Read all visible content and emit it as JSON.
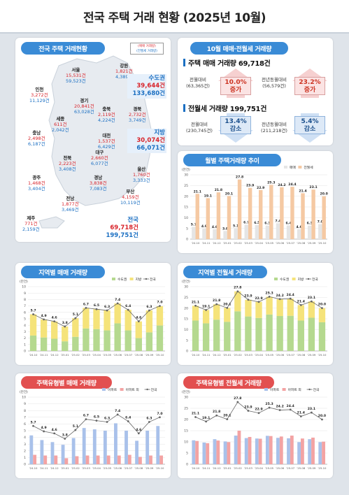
{
  "page": {
    "title": "전국 주택 거래 현황 (2025년 10월)"
  },
  "colors": {
    "maemae": "#f5e37a",
    "sudokwon": "#b5d98f",
    "jibang": "#f5e37a",
    "apt": "#a9c1ea",
    "nonapt": "#f3a3a3",
    "jeonse_bar": "#f5c9a3",
    "maemae_bar": "#e5e5e5",
    "title_blue": "#3a8bd6",
    "title_red": "#e25050",
    "line": "#666666"
  },
  "map": {
    "panel_title": "전국 주택 거래현황",
    "legend": [
      "(매매 거래량)",
      "(전월세 거래량)"
    ],
    "regions": [
      {
        "name": "서울",
        "trade": "15,531건",
        "jeonse": "59,523건"
      },
      {
        "name": "강원",
        "trade": "1,821건",
        "jeonse": "4,389건"
      },
      {
        "name": "인천",
        "trade": "3,272건",
        "jeonse": "11,129건"
      },
      {
        "name": "경기",
        "trade": "20,841건",
        "jeonse": "63,028건"
      },
      {
        "name": "충북",
        "trade": "2,119건",
        "jeonse": "4,224건"
      },
      {
        "name": "세종",
        "trade": "611건",
        "jeonse": "2,042건"
      },
      {
        "name": "경북",
        "trade": "2,732건",
        "jeonse": "3,749건"
      },
      {
        "name": "충남",
        "trade": "2,498건",
        "jeonse": "6,187건"
      },
      {
        "name": "대전",
        "trade": "1,537건",
        "jeonse": "6,429건"
      },
      {
        "name": "대구",
        "trade": "2,660건",
        "jeonse": "6,077건"
      },
      {
        "name": "전북",
        "trade": "2,223건",
        "jeonse": "3,408건"
      },
      {
        "name": "울산",
        "trade": "1,760건",
        "jeonse": "3,333건"
      },
      {
        "name": "광주",
        "trade": "1,468건",
        "jeonse": "3,404건"
      },
      {
        "name": "경남",
        "trade": "3,838건",
        "jeonse": "7,083건"
      },
      {
        "name": "부산",
        "trade": "4,159건",
        "jeonse": "10,119건"
      },
      {
        "name": "전남",
        "trade": "1,877건",
        "jeonse": "3,469건"
      },
      {
        "name": "제주",
        "trade": "771건",
        "jeonse": "2,159건"
      }
    ],
    "sudokwon": {
      "name": "수도권",
      "trade": "39,644건",
      "jeonse": "133,680건"
    },
    "jibang": {
      "name": "지방",
      "trade": "30,074건",
      "jeonse": "66,071건"
    },
    "national": {
      "name": "전국",
      "trade": "69,718건",
      "jeonse": "199,751건"
    }
  },
  "summary": {
    "panel_title": "10월 매매·전월세 거래량",
    "trade": {
      "head": "주택 매매 거래량 69,718건",
      "mom_label": "전월대비",
      "mom_base": "(63,365건)",
      "mom_value": "10.0%",
      "mom_dir": "증가",
      "yoy_label": "전년동월대비",
      "yoy_base": "(56,579건)",
      "yoy_value": "23.2%",
      "yoy_dir": "증가"
    },
    "jeonse": {
      "head": "전월세 거래량 199,751건",
      "mom_label": "전월대비",
      "mom_base": "(230,745건)",
      "mom_value": "13.4%",
      "mom_dir": "감소",
      "yoy_label": "전년동월대비",
      "yoy_base": "(211,218건)",
      "yoy_value": "5.4%",
      "yoy_dir": "감소"
    }
  },
  "chart_data": [
    {
      "id": "monthly",
      "type": "bar",
      "title": "월별 주택거래량 추이",
      "unit": "(만건)",
      "categories": [
        "'24.10",
        "'24.11",
        "'24.12",
        "'25.01",
        "'25.02",
        "'25.03",
        "'25.04",
        "'25.05",
        "'25.06",
        "'25.07",
        "'25.08",
        "'25.09",
        "'25.10"
      ],
      "series": [
        {
          "name": "매매",
          "values": [
            5.7,
            4.9,
            4.6,
            3.8,
            5.1,
            6.7,
            6.5,
            6.3,
            7.4,
            6.4,
            4.6,
            6.3,
            7.0
          ]
        },
        {
          "name": "전월세",
          "values": [
            21.1,
            19.1,
            21.8,
            20.1,
            27.8,
            23.9,
            22.9,
            25.3,
            24.2,
            24.4,
            21.4,
            23.1,
            20.0
          ]
        }
      ],
      "yticks": [
        0,
        5,
        10,
        15,
        20,
        25,
        30
      ],
      "ylim": [
        0,
        30
      ],
      "legend": "top-right"
    },
    {
      "id": "region_trade",
      "type": "bar",
      "title": "지역별 매매 거래량",
      "unit": "(만건)",
      "stacked": true,
      "categories": [
        "'24.10",
        "'24.11",
        "'24.12",
        "'25.01",
        "'25.02",
        "'25.03",
        "'25.04",
        "'25.05",
        "'25.06",
        "'25.07",
        "'25.08",
        "'25.09",
        "'25.10"
      ],
      "series": [
        {
          "name": "수도권",
          "values": [
            2.4,
            2.1,
            1.9,
            1.5,
            2.2,
            3.5,
            3.4,
            3.2,
            4.3,
            3.2,
            2.0,
            2.9,
            3.96
          ]
        },
        {
          "name": "지방",
          "values": [
            3.3,
            2.8,
            2.7,
            2.3,
            2.9,
            3.2,
            3.1,
            3.1,
            3.1,
            3.2,
            2.6,
            3.4,
            3.0
          ]
        }
      ],
      "line": {
        "name": "전국",
        "values": [
          5.7,
          4.9,
          4.6,
          3.8,
          5.1,
          6.7,
          6.5,
          6.3,
          7.4,
          6.4,
          4.6,
          6.3,
          7.0
        ]
      },
      "yticks": [
        0,
        1,
        2,
        3,
        4,
        5,
        6,
        7,
        8,
        9,
        10
      ],
      "ylim": [
        0,
        10
      ],
      "legend": "top-right"
    },
    {
      "id": "region_jeonse",
      "type": "bar",
      "title": "지역별 전월세 거래량",
      "unit": "(만건)",
      "stacked": true,
      "categories": [
        "'24.10",
        "'24.11",
        "'24.12",
        "'25.01",
        "'25.02",
        "'25.03",
        "'25.04",
        "'25.05",
        "'25.06",
        "'25.07",
        "'25.08",
        "'25.09",
        "'25.10"
      ],
      "series": [
        {
          "name": "수도권",
          "values": [
            14.2,
            12.9,
            14.6,
            13.6,
            18.5,
            16.1,
            15.4,
            17.0,
            16.3,
            16.4,
            14.2,
            15.5,
            13.4
          ]
        },
        {
          "name": "지방",
          "values": [
            6.9,
            6.2,
            7.2,
            6.5,
            9.3,
            7.8,
            7.5,
            8.3,
            7.9,
            8.0,
            7.2,
            7.6,
            6.6
          ]
        }
      ],
      "line": {
        "name": "전국",
        "values": [
          21.1,
          19.1,
          21.8,
          20.1,
          27.8,
          23.9,
          22.9,
          25.3,
          24.2,
          24.4,
          21.4,
          23.1,
          20.0
        ]
      },
      "yticks": [
        0,
        5,
        10,
        15,
        20,
        25,
        30
      ],
      "ylim": [
        0,
        30
      ],
      "legend": "top-right"
    },
    {
      "id": "type_trade",
      "type": "bar",
      "title": "주택유형별 매매 거래량",
      "unit": "(만건)",
      "categories": [
        "'24.10",
        "'24.11",
        "'24.12",
        "'25.01",
        "'25.02",
        "'25.03",
        "'25.04",
        "'25.05",
        "'25.06",
        "'25.07",
        "'25.08",
        "'25.09",
        "'25.10"
      ],
      "series": [
        {
          "name": "아파트",
          "values": [
            4.3,
            3.6,
            3.3,
            2.9,
            3.9,
            5.4,
            5.2,
            5.0,
            6.1,
            5.0,
            3.5,
            5.0,
            5.7
          ]
        },
        {
          "name": "아파트 외",
          "values": [
            1.4,
            1.3,
            1.3,
            0.9,
            1.2,
            1.3,
            1.3,
            1.3,
            1.3,
            1.4,
            1.1,
            1.3,
            1.3
          ]
        }
      ],
      "line": {
        "name": "전국",
        "values": [
          5.7,
          4.9,
          4.6,
          3.8,
          5.1,
          6.7,
          6.5,
          6.3,
          7.4,
          6.4,
          4.6,
          6.3,
          7.0
        ]
      },
      "yticks": [
        0,
        1,
        2,
        3,
        4,
        5,
        6,
        7,
        8,
        9,
        10
      ],
      "ylim": [
        0,
        10
      ],
      "legend": "top-right"
    },
    {
      "id": "type_jeonse",
      "type": "bar",
      "title": "주택유형별 전월세 거래량",
      "unit": "(만건)",
      "categories": [
        "'24.10",
        "'24.11",
        "'24.12",
        "'25.01",
        "'25.02",
        "'25.03",
        "'25.04",
        "'25.05",
        "'25.06",
        "'25.07",
        "'25.08",
        "'25.09",
        "'25.10"
      ],
      "series": [
        {
          "name": "아파트",
          "values": [
            10.7,
            9.7,
            11.2,
            10.2,
            12.8,
            11.7,
            11.5,
            12.7,
            11.8,
            11.6,
            9.9,
            11.2,
            9.9
          ]
        },
        {
          "name": "아파트 외",
          "values": [
            10.4,
            9.4,
            10.6,
            9.9,
            15.0,
            12.2,
            11.4,
            12.6,
            12.4,
            12.8,
            11.5,
            11.9,
            10.1
          ]
        }
      ],
      "line": {
        "name": "전국",
        "values": [
          21.1,
          19.1,
          21.8,
          20.1,
          27.8,
          23.9,
          22.9,
          25.3,
          24.2,
          24.4,
          21.4,
          23.1,
          20.0
        ]
      },
      "yticks": [
        0,
        5,
        10,
        15,
        20,
        25,
        30
      ],
      "ylim": [
        0,
        30
      ],
      "legend": "top-right"
    }
  ]
}
